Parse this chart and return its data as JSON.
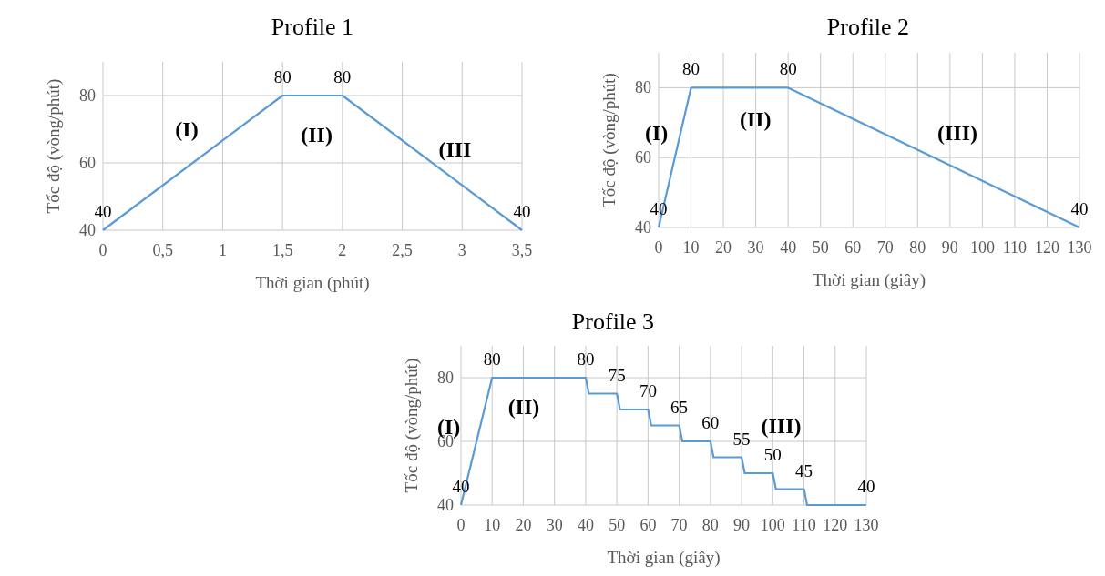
{
  "chart_data": [
    {
      "type": "line",
      "title": "Profile 1",
      "xlabel": "Thời gian (phút)",
      "ylabel": "Tốc độ (vòng/phút)",
      "x": [
        0,
        1.5,
        2,
        3.5
      ],
      "values": [
        40,
        80,
        80,
        40
      ],
      "color": "#5b9bd5",
      "data_labels": true,
      "xlim": [
        0,
        3.5
      ],
      "xticks": [
        0,
        {
          "value": 0.5,
          "label": "0,5"
        },
        1,
        {
          "value": 1.5,
          "label": "1,5"
        },
        2,
        {
          "value": 2.5,
          "label": "2,5"
        },
        3,
        {
          "value": 3.5,
          "label": "3,5"
        }
      ],
      "ylim": [
        40,
        90
      ],
      "yticks": [
        40,
        60,
        80
      ],
      "grid": true,
      "annotations": [
        "(I)",
        "(II)",
        "(III"
      ]
    },
    {
      "type": "line",
      "title": "Profile 2",
      "xlabel": "Thời gian (giây)",
      "ylabel": "Tốc độ (vòng/phút)",
      "x": [
        0,
        10,
        40,
        130
      ],
      "values": [
        40,
        80,
        80,
        40
      ],
      "color": "#5b9bd5",
      "data_labels": true,
      "xlim": [
        0,
        130
      ],
      "xticks": [
        0,
        10,
        20,
        30,
        40,
        50,
        60,
        70,
        80,
        90,
        100,
        110,
        120,
        130
      ],
      "ylim": [
        40,
        90
      ],
      "yticks": [
        40,
        60,
        80
      ],
      "grid": true,
      "annotations": [
        "(I)",
        "(II)",
        "(III)"
      ]
    },
    {
      "type": "line",
      "title": "Profile 3",
      "xlabel": "Thời gian (giây)",
      "ylabel": "Tốc độ (vòng/phút)",
      "x": [
        0,
        10,
        40,
        41,
        50,
        51,
        60,
        61,
        70,
        71,
        80,
        81,
        90,
        91,
        100,
        101,
        110,
        111,
        130
      ],
      "values": [
        40,
        80,
        80,
        75,
        75,
        70,
        70,
        65,
        65,
        60,
        60,
        55,
        55,
        50,
        50,
        45,
        45,
        40,
        40
      ],
      "value_labels": [
        "40",
        "80",
        "80",
        null,
        "75",
        null,
        "70",
        null,
        "65",
        null,
        "60",
        null,
        "55",
        null,
        "50",
        null,
        "45",
        null,
        "40"
      ],
      "color": "#5b9bd5",
      "xlim": [
        0,
        130
      ],
      "xticks": [
        0,
        10,
        20,
        30,
        40,
        50,
        60,
        70,
        80,
        90,
        100,
        110,
        120,
        130
      ],
      "ylim": [
        40,
        90
      ],
      "yticks": [
        40,
        60,
        80
      ],
      "grid": true,
      "annotations": [
        "(I)",
        "(II)",
        "(III)"
      ]
    }
  ]
}
